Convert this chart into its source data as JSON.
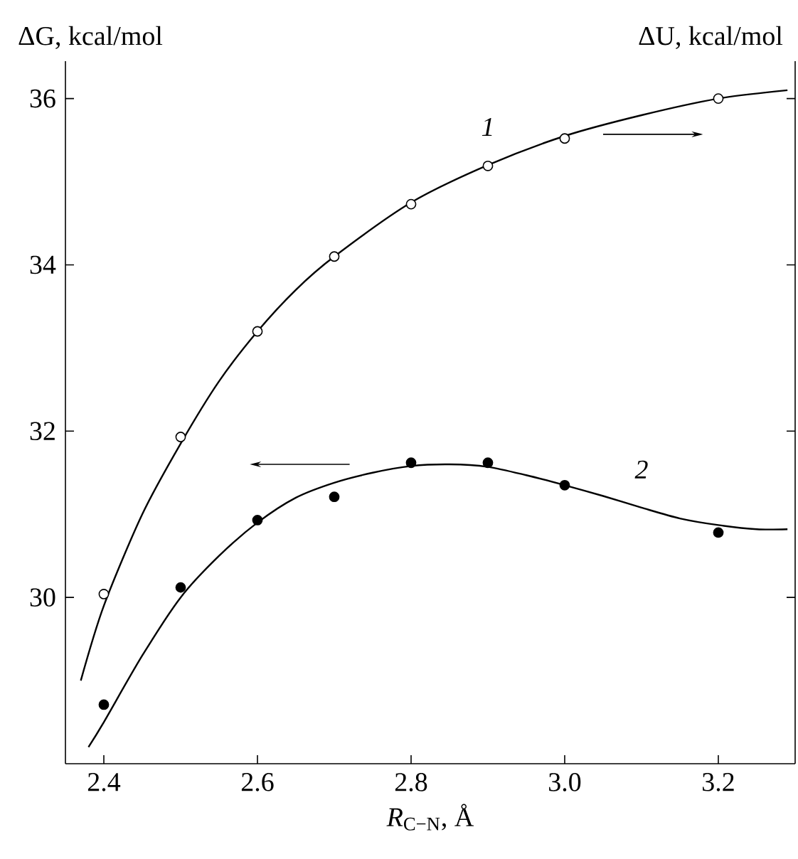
{
  "chart_data": {
    "type": "scatter",
    "xlabel": "*R*$_{C−N}$, Å",
    "ylabel": "ΔG, kcal/mol",
    "y2label": "ΔU, kcal/mol",
    "xlim": [
      2.35,
      3.3
    ],
    "xticks": [
      {
        "value": 2.4,
        "label": "2.4"
      },
      {
        "value": 2.6,
        "label": "2.6"
      },
      {
        "value": 2.8,
        "label": "2.8"
      },
      {
        "value": 3.0,
        "label": "3.0"
      },
      {
        "value": 3.2,
        "label": "3.2"
      }
    ],
    "ylim": [
      28,
      36.45
    ],
    "yticks": [
      30,
      32,
      34,
      36
    ],
    "marker": "circle",
    "series": [
      {
        "color": "#ffffff",
        "x": [
          2.4,
          2.5,
          2.6,
          2.7,
          2.8,
          2.9,
          3.0,
          3.2
        ],
        "values": [
          30.04,
          31.93,
          33.2,
          34.1,
          34.73,
          35.19,
          35.52,
          36.0
        ]
      },
      {
        "color": "#000000",
        "x": [
          2.4,
          2.5,
          2.6,
          2.7,
          2.8,
          2.9,
          3.0,
          3.2
        ],
        "values": [
          28.71,
          30.12,
          30.93,
          31.21,
          31.62,
          31.62,
          31.35,
          30.78
        ]
      },
      {
        "type": "line",
        "name": "1",
        "color": "#000000",
        "marker": "none",
        "x": [
          2.37,
          2.4,
          2.45,
          2.5,
          2.55,
          2.6,
          2.65,
          2.7,
          2.8,
          2.9,
          3.0,
          3.1,
          3.2,
          3.29
        ],
        "values": [
          29.0,
          29.9,
          31.0,
          31.85,
          32.6,
          33.2,
          33.7,
          34.1,
          34.75,
          35.2,
          35.55,
          35.8,
          36.0,
          36.1
        ]
      },
      {
        "type": "line",
        "name": "2",
        "color": "#000000",
        "marker": "none",
        "x": [
          2.38,
          2.4,
          2.45,
          2.5,
          2.55,
          2.6,
          2.65,
          2.7,
          2.75,
          2.8,
          2.85,
          2.9,
          2.95,
          3.0,
          3.05,
          3.1,
          3.15,
          3.2,
          3.25,
          3.29
        ],
        "values": [
          28.2,
          28.5,
          29.3,
          30.0,
          30.5,
          30.9,
          31.2,
          31.38,
          31.5,
          31.58,
          31.6,
          31.57,
          31.47,
          31.35,
          31.22,
          31.08,
          30.95,
          30.87,
          30.82,
          30.82
        ]
      }
    ]
  }
}
